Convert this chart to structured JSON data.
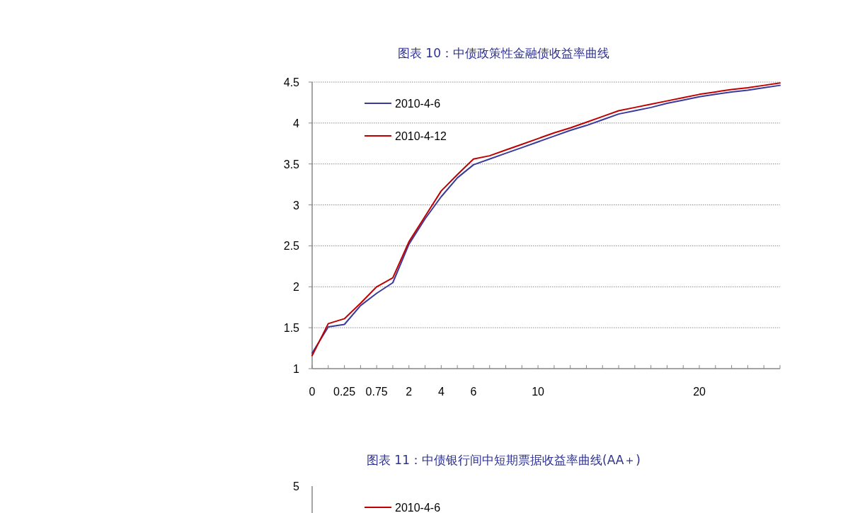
{
  "chart_data": [
    {
      "type": "line",
      "title": "图表 10：中债政策性金融债收益率曲线",
      "categories": [
        "0",
        null,
        "0.25",
        null,
        "0.75",
        null,
        "2",
        null,
        "4",
        null,
        "6",
        null,
        null,
        null,
        "10",
        null,
        null,
        null,
        null,
        null,
        null,
        null,
        null,
        null,
        "20",
        null,
        null,
        null,
        null,
        null
      ],
      "series": [
        {
          "name": "2010-4-6",
          "color": "#3a3a9c",
          "values": [
            1.19,
            1.51,
            1.54,
            1.77,
            1.92,
            2.05,
            2.52,
            2.83,
            3.1,
            3.33,
            3.49,
            3.56,
            3.63,
            3.7,
            3.77,
            3.84,
            3.91,
            3.97,
            4.04,
            4.11,
            4.15,
            4.19,
            4.24,
            4.28,
            4.32,
            4.35,
            4.38,
            4.4,
            4.43,
            4.46
          ]
        },
        {
          "name": "2010-4-12",
          "color": "#c00000",
          "values": [
            1.16,
            1.55,
            1.61,
            1.8,
            2.0,
            2.11,
            2.55,
            2.86,
            3.17,
            3.37,
            3.56,
            3.6,
            3.67,
            3.74,
            3.81,
            3.88,
            3.94,
            4.01,
            4.08,
            4.15,
            4.19,
            4.23,
            4.27,
            4.31,
            4.35,
            4.38,
            4.41,
            4.43,
            4.46,
            4.49
          ]
        }
      ],
      "ylim": [
        1,
        4.5
      ],
      "yticks": [
        1,
        1.5,
        2,
        2.5,
        3,
        3.5,
        4,
        4.5
      ],
      "grid": "y",
      "legend": "top left",
      "marker": "none",
      "line_style": "solid"
    },
    {
      "type": "other",
      "title": "图表 11：中债银行间中短期票据收益率曲线(AA＋)",
      "series": [
        {
          "name": "2010-4-6",
          "color": "#c00000"
        }
      ],
      "annotations": [
        "5"
      ],
      "legend": "top left"
    }
  ]
}
